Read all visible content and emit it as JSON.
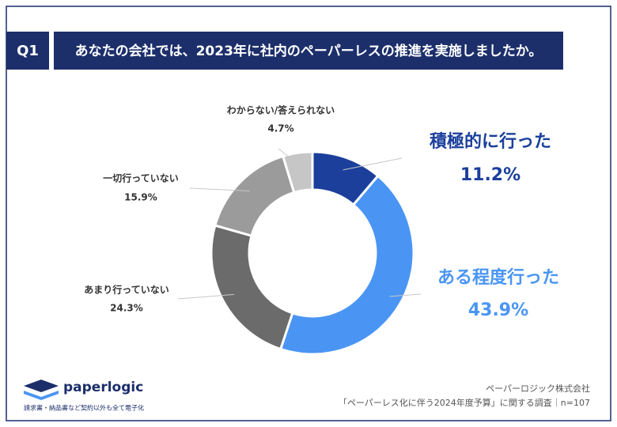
{
  "chart_data": {
    "type": "donut",
    "question_label": "Q1",
    "title": "あなたの会社では、2023年に社内のペーパーレスの推進を実施しましたか。",
    "categories": [
      "積極的に行った",
      "ある程度行った",
      "あまり行っていない",
      "一切行っていない",
      "わからない/答えられない"
    ],
    "values": [
      11.2,
      43.9,
      24.3,
      15.9,
      4.7
    ],
    "value_labels": [
      "11.2%",
      "43.9%",
      "24.3%",
      "15.9%",
      "4.7%"
    ],
    "colors": [
      "#1b3f9b",
      "#4a95f4",
      "#6b6b6b",
      "#9b9b9b",
      "#c6c6c6"
    ],
    "logo": "paperlogic",
    "tagline": "請求書・納品書など契約以外も全て電子化",
    "company": "ペーパーロジック株式会社",
    "source": "「ペーパーレス化に伴う2024年度予算」に関する調査｜n=107"
  }
}
